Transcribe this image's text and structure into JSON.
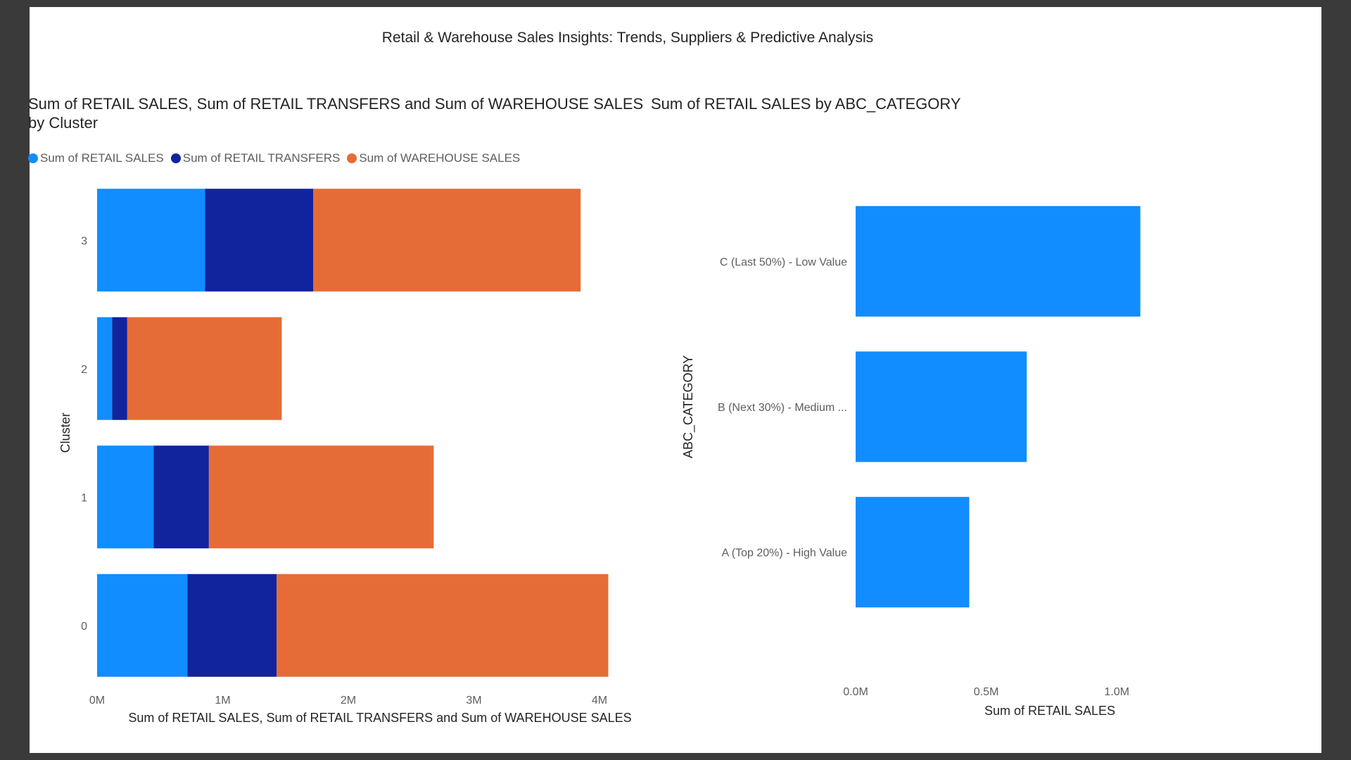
{
  "report": {
    "title": "Retail & Warehouse Sales Insights: Trends, Suppliers & Predictive Analysis"
  },
  "colors": {
    "retail_sales": "#118DFF",
    "retail_transfers": "#12239E",
    "warehouse_sales": "#E66C37"
  },
  "chart_data": [
    {
      "type": "bar",
      "orientation": "horizontal",
      "stacked": true,
      "title": "Sum of RETAIL SALES, Sum of RETAIL TRANSFERS and Sum of WAREHOUSE SALES by Cluster",
      "xlabel": "Sum of RETAIL SALES, Sum of RETAIL TRANSFERS and Sum of WAREHOUSE SALES",
      "ylabel": "Cluster",
      "xlim": [
        0,
        4000000
      ],
      "x_ticks": [
        "0M",
        "1M",
        "2M",
        "3M",
        "4M"
      ],
      "legend_position": "top-left",
      "categories": [
        "3",
        "2",
        "1",
        "0"
      ],
      "series": [
        {
          "name": "Sum of RETAIL SALES",
          "values": [
            860000,
            120000,
            450000,
            720000
          ]
        },
        {
          "name": "Sum of RETAIL TRANSFERS",
          "values": [
            860000,
            120000,
            440000,
            710000
          ]
        },
        {
          "name": "Sum of WAREHOUSE SALES",
          "values": [
            2130000,
            1230000,
            1790000,
            2640000
          ]
        }
      ]
    },
    {
      "type": "bar",
      "orientation": "horizontal",
      "title": "Sum of RETAIL SALES by ABC_CATEGORY",
      "xlabel": "Sum of RETAIL SALES",
      "ylabel": "ABC_CATEGORY",
      "xlim": [
        0,
        1250000
      ],
      "x_ticks": [
        "0.0M",
        "0.5M",
        "1.0M"
      ],
      "categories": [
        "C (Last 50%) - Low Value",
        "B (Next 30%) - Medium ...",
        "A (Top 20%) - High Value"
      ],
      "values": [
        1090000,
        655000,
        435000
      ]
    }
  ]
}
